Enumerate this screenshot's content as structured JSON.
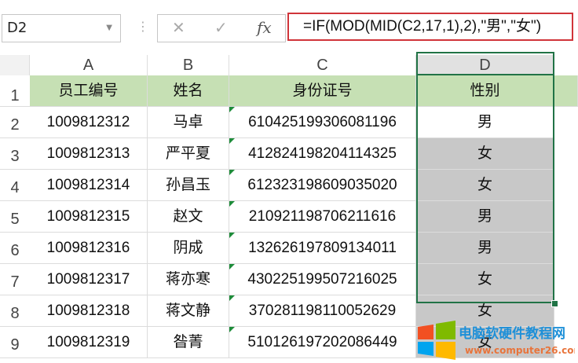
{
  "formula_bar": {
    "name_box": "D2",
    "cancel_icon": "✕",
    "enter_icon": "✓",
    "fx_label": "fx",
    "formula": "=IF(MOD(MID(C2,17,1),2),\"男\",\"女\")"
  },
  "columns": [
    "A",
    "B",
    "C",
    "D"
  ],
  "row_numbers": [
    "1",
    "2",
    "3",
    "4",
    "5",
    "6",
    "7",
    "8",
    "9"
  ],
  "headers": [
    "员工编号",
    "姓名",
    "身份证号",
    "性别"
  ],
  "rows": [
    [
      "1009812312",
      "马卓",
      "610425199306081196",
      "男"
    ],
    [
      "1009812313",
      "严平夏",
      "412824198204114325",
      "女"
    ],
    [
      "1009812314",
      "孙昌玉",
      "612323198609035020",
      "女"
    ],
    [
      "1009812315",
      "赵文",
      "210921198706211616",
      "男"
    ],
    [
      "1009812316",
      "阴成",
      "132626197809134011",
      "男"
    ],
    [
      "1009812317",
      "蒋亦寒",
      "430225199507216025",
      "女"
    ],
    [
      "1009812318",
      "蒋文静",
      "370281198110052629",
      "女"
    ],
    [
      "1009812319",
      "昝菁",
      "510126197202086449",
      "女"
    ]
  ],
  "colors": {
    "header_fill": "#c6e0b4",
    "selection_fill": "#c8c8c8",
    "selection_border": "#217346",
    "formula_border": "#d0343a"
  },
  "watermark": {
    "title": "电脑软硬件教程网",
    "url": "www.computer26.com"
  }
}
